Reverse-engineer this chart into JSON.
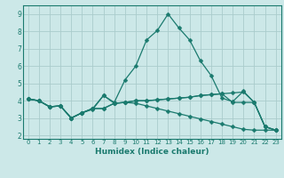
{
  "title": "",
  "xlabel": "Humidex (Indice chaleur)",
  "ylabel": "",
  "bg_color": "#cce8e8",
  "grid_color": "#aacccc",
  "line_color": "#1a7a6e",
  "xlim": [
    -0.5,
    23.5
  ],
  "ylim": [
    1.8,
    9.5
  ],
  "xticks": [
    0,
    1,
    2,
    3,
    4,
    5,
    6,
    7,
    8,
    9,
    10,
    11,
    12,
    13,
    14,
    15,
    16,
    17,
    18,
    19,
    20,
    21,
    22,
    23
  ],
  "yticks": [
    2,
    3,
    4,
    5,
    6,
    7,
    8,
    9
  ],
  "lines": [
    {
      "x": [
        0,
        1,
        2,
        3,
        4,
        5,
        6,
        7,
        8,
        9,
        10,
        11,
        12,
        13,
        14,
        15,
        16,
        17,
        18,
        19,
        20,
        21,
        22,
        23
      ],
      "y": [
        4.1,
        4.0,
        3.65,
        3.7,
        3.0,
        3.3,
        3.5,
        4.3,
        3.9,
        5.2,
        6.0,
        7.5,
        8.05,
        9.0,
        8.2,
        7.5,
        6.3,
        5.45,
        4.15,
        3.95,
        4.55,
        3.9,
        2.5,
        2.3
      ]
    },
    {
      "x": [
        0,
        1,
        2,
        3,
        4,
        5,
        6,
        7,
        8,
        9,
        10,
        11,
        12,
        13,
        14,
        15,
        16,
        17,
        18,
        19,
        20,
        21,
        22,
        23
      ],
      "y": [
        4.1,
        4.0,
        3.65,
        3.7,
        3.0,
        3.3,
        3.55,
        3.55,
        3.85,
        3.9,
        4.0,
        4.0,
        4.05,
        4.1,
        4.15,
        4.2,
        4.3,
        4.35,
        4.4,
        4.45,
        4.5,
        3.9,
        2.5,
        2.3
      ]
    },
    {
      "x": [
        0,
        1,
        2,
        3,
        4,
        5,
        6,
        7,
        8,
        9,
        10,
        11,
        12,
        13,
        14,
        15,
        16,
        17,
        18,
        19,
        20,
        21,
        22,
        23
      ],
      "y": [
        4.1,
        4.0,
        3.65,
        3.7,
        3.0,
        3.3,
        3.55,
        3.55,
        3.85,
        3.9,
        3.85,
        3.7,
        3.55,
        3.4,
        3.25,
        3.1,
        2.95,
        2.8,
        2.65,
        2.5,
        2.35,
        2.3,
        2.3,
        2.3
      ]
    },
    {
      "x": [
        0,
        1,
        2,
        3,
        4,
        5,
        6,
        7,
        8,
        9,
        10,
        11,
        12,
        13,
        14,
        15,
        16,
        17,
        18,
        19,
        20,
        21,
        22,
        23
      ],
      "y": [
        4.1,
        4.0,
        3.65,
        3.7,
        3.0,
        3.3,
        3.55,
        4.3,
        3.85,
        3.9,
        4.0,
        4.0,
        4.05,
        4.1,
        4.15,
        4.2,
        4.3,
        4.35,
        4.4,
        3.9,
        3.9,
        3.9,
        2.5,
        2.3
      ]
    }
  ],
  "marker_size": 2.5,
  "linewidth": 0.9,
  "tick_fontsize": 5.0,
  "xlabel_fontsize": 6.5
}
